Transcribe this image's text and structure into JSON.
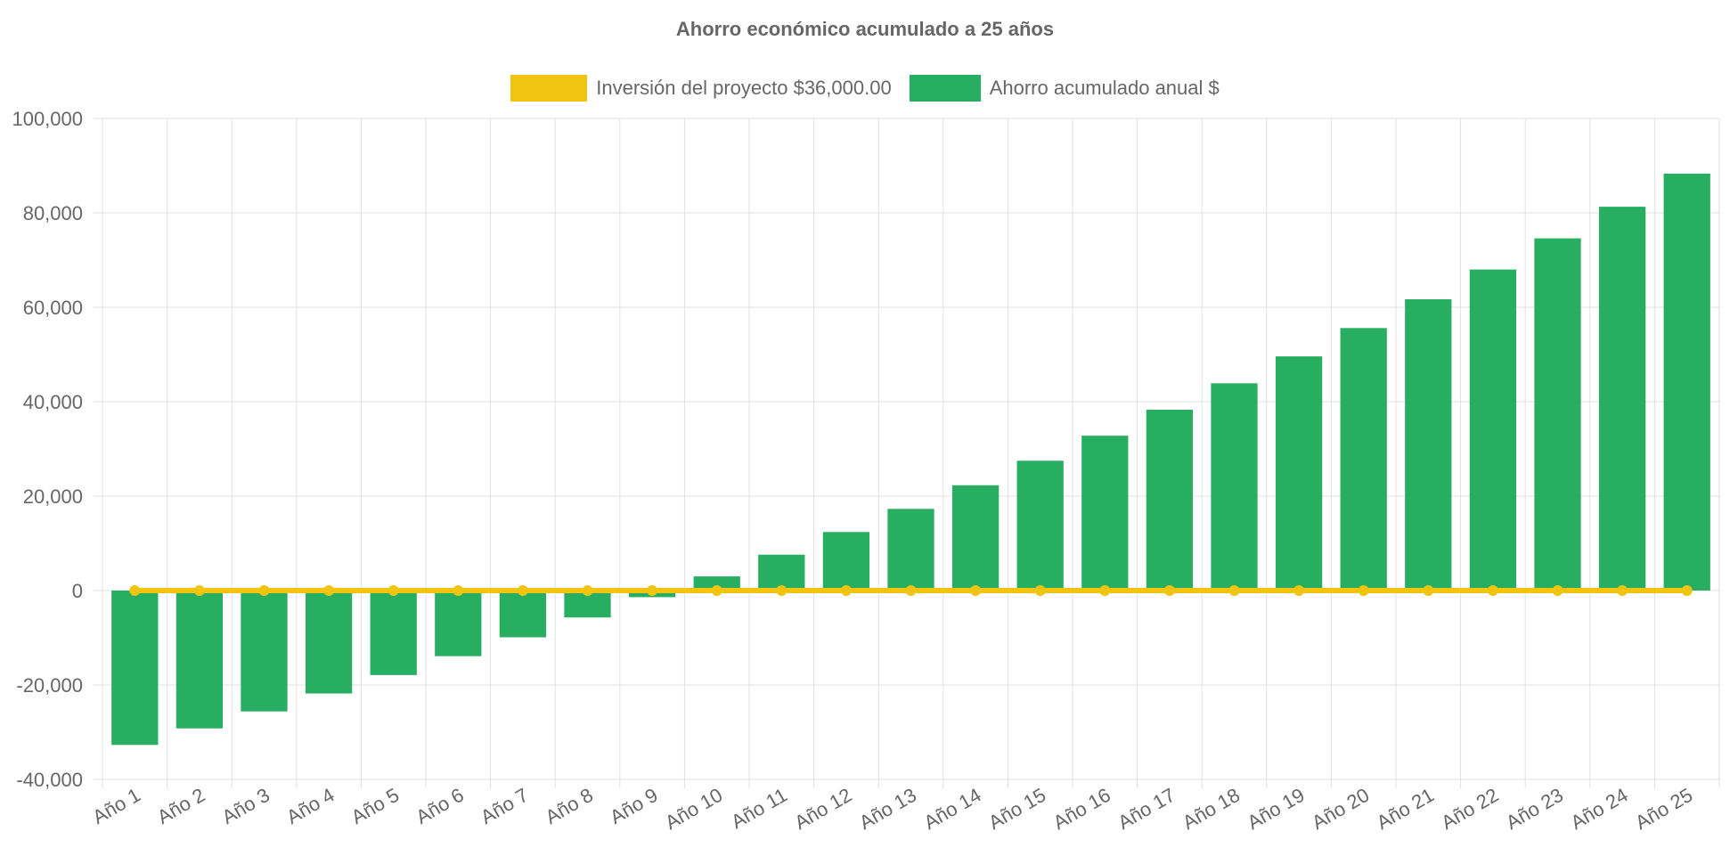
{
  "colors": {
    "bars": "#27AE60",
    "line": "#F1C40F",
    "grid": "#e0e0e0",
    "text": "#666666"
  },
  "chart_data": {
    "type": "bar",
    "title": "Ahorro económico acumulado a 25 años",
    "xlabel": "",
    "ylabel": "",
    "ylim": [
      -40000,
      100000
    ],
    "yticks": [
      "100,000",
      "80,000",
      "60,000",
      "40,000",
      "20,000",
      "0",
      "-20,000",
      "-40,000"
    ],
    "grid": true,
    "legend_position": "top",
    "categories": [
      "Año 1",
      "Año 2",
      "Año 3",
      "Año 4",
      "Año 5",
      "Año 6",
      "Año 7",
      "Año 8",
      "Año 9",
      "Año 10",
      "Año 11",
      "Año 12",
      "Año 13",
      "Año 14",
      "Año 15",
      "Año 16",
      "Año 17",
      "Año 18",
      "Año 19",
      "Año 20",
      "Año 21",
      "Año 22",
      "Año 23",
      "Año 24",
      "Año 25"
    ],
    "series": [
      {
        "name": "Inversión del proyecto $36,000.00",
        "type": "line",
        "values": [
          0,
          0,
          0,
          0,
          0,
          0,
          0,
          0,
          0,
          0,
          0,
          0,
          0,
          0,
          0,
          0,
          0,
          0,
          0,
          0,
          0,
          0,
          0,
          0,
          0
        ]
      },
      {
        "name": "Ahorro acumulado anual $",
        "type": "bar",
        "values": [
          -32700,
          -29200,
          -25600,
          -21800,
          -17900,
          -13900,
          -9900,
          -5700,
          -1400,
          3000,
          7600,
          12400,
          17300,
          22300,
          27500,
          32800,
          38300,
          43900,
          49600,
          55600,
          61700,
          68000,
          74600,
          81300,
          88300
        ]
      }
    ]
  }
}
